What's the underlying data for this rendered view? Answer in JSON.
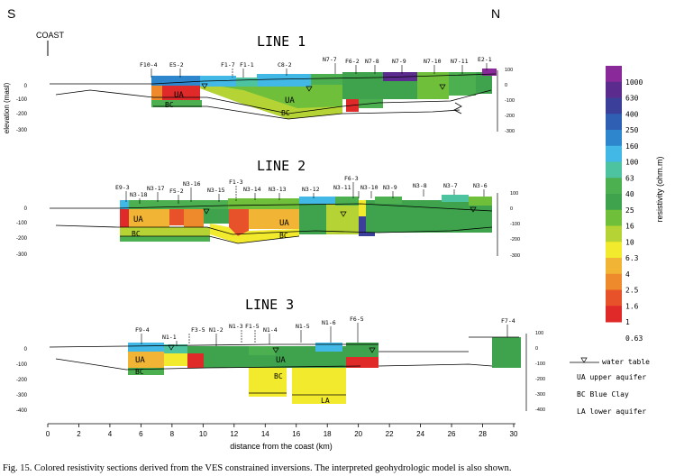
{
  "header": {
    "left_dir": "S",
    "right_dir": "N",
    "coast": "COAST"
  },
  "y_axis_label": "elevation (masl)",
  "elev_ticks": [
    "0",
    "-100",
    "-200",
    "-300"
  ],
  "right_ticks_3": [
    "100",
    "0",
    "-100",
    "-200",
    "-300"
  ],
  "right_ticks_4": [
    "100",
    "0",
    "-100",
    "-200",
    "-300",
    "-400"
  ],
  "lines": [
    {
      "title": "LINE 1",
      "ves": [
        "F10-4",
        "E5-2",
        "F1-7",
        "F1-1",
        "C8-2",
        "N7-7",
        "F6-2",
        "N7-8",
        "N7-9",
        "N7-10",
        "N7-11",
        "E2-1"
      ],
      "units": [
        "UA",
        "BC",
        "UA",
        "BC"
      ]
    },
    {
      "title": "LINE 2",
      "ves": [
        "E9-3",
        "N3-18",
        "N3-17",
        "F5-2",
        "N3-16",
        "N3-15",
        "F1-3",
        "N3-14",
        "N3-13",
        "N3-12",
        "F6-3",
        "N3-11",
        "N3-10",
        "N3-9",
        "N3-8",
        "N3-7",
        "N3-6"
      ],
      "units": [
        "UA",
        "BC",
        "UA",
        "BC"
      ]
    },
    {
      "title": "LINE 3",
      "ves": [
        "F9-4",
        "N1-1",
        "F3-5",
        "N1-2",
        "N1-3",
        "F1-5",
        "N1-4",
        "N1-5",
        "N1-6",
        "F6-5",
        "F7-4"
      ],
      "units": [
        "UA",
        "BC",
        "UA",
        "BC",
        "LA"
      ]
    }
  ],
  "x_axis": {
    "label": "distance from the coast (km)",
    "ticks": [
      "0",
      "2",
      "4",
      "6",
      "8",
      "10",
      "12",
      "14",
      "16",
      "18",
      "20",
      "22",
      "24",
      "26",
      "28",
      "30"
    ]
  },
  "colorbar": {
    "title": "resistivity (ohm.m)",
    "labels": [
      "1000",
      "630",
      "400",
      "250",
      "160",
      "100",
      "63",
      "40",
      "25",
      "16",
      "10",
      "6.3",
      "4",
      "2.5",
      "1.6",
      "1",
      "0.63"
    ],
    "colors": [
      "#8a2a9a",
      "#5b2c8e",
      "#3b3f9a",
      "#2f5fb3",
      "#2e86cc",
      "#41b8e6",
      "#4dc3a0",
      "#4caf50",
      "#3fa34d",
      "#6fbf3a",
      "#b5d334",
      "#f2ea2c",
      "#f2b434",
      "#ee8a2b",
      "#e8522a",
      "#e02a2a"
    ]
  },
  "legend": [
    {
      "key": "water_table",
      "text": "water table"
    },
    {
      "key": "UA",
      "text": "UA  upper aquifer"
    },
    {
      "key": "BC",
      "text": "BC  Blue Clay"
    },
    {
      "key": "LA",
      "text": "LA  lower aquifer"
    }
  ],
  "caption": "Fig. 15. Colored resistivity sections derived from the VES constrained  inversions. The interpreted geohydrologic model is also shown."
}
